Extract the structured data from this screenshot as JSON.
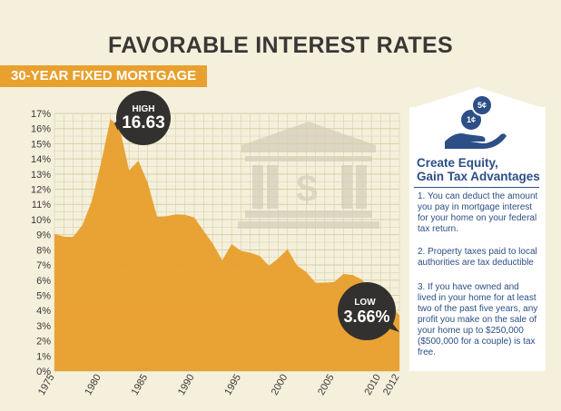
{
  "header": {
    "title": "FAVORABLE INTEREST RATES",
    "subtitle": "30-YEAR FIXED MORTGAGE"
  },
  "callouts": {
    "high_label": "HIGH",
    "high_value": "16.63",
    "low_label": "LOW",
    "low_value": "3.66%"
  },
  "sidebar": {
    "icon_coin_1": "1¢",
    "icon_coin_2": "5¢",
    "heading_line1": "Create Equity,",
    "heading_line2": "Gain Tax Advantages",
    "items": [
      "1. You can deduct the amount you pay in mortgage interest for your home on your federal tax return.",
      "2. Property taxes paid to local authorities are tax deductible",
      "3. If you have owned and lived in your home for at least two of the past five years, any profit you make on the sale of your home up to $250,000 ($500,000 for a couple) is tax free."
    ]
  },
  "colors": {
    "background": "#f4f0dc",
    "area": "#e8a02e",
    "grid": "#d9cfa6",
    "text_dark": "#3a3736",
    "accent_blue": "#2c4f86",
    "callout_dark": "#33312f",
    "bank_icon": "#dcd7c4"
  },
  "chart_data": {
    "type": "area",
    "x_ticks": [
      "1975",
      "1980",
      "1985",
      "1990",
      "1995",
      "2000",
      "2005",
      "2010",
      "2012"
    ],
    "y_ticks": [
      "0%",
      "1%",
      "2%",
      "3%",
      "4%",
      "5%",
      "6%",
      "7%",
      "8%",
      "9%",
      "10%",
      "11%",
      "12%",
      "13%",
      "14%",
      "15%",
      "16%",
      "17%"
    ],
    "ylim": [
      0,
      17
    ],
    "xlim": [
      1975,
      2012
    ],
    "grid": true,
    "x": [
      1975,
      1976,
      1977,
      1978,
      1979,
      1980,
      1981,
      1982,
      1983,
      1984,
      1985,
      1986,
      1987,
      1988,
      1989,
      1990,
      1991,
      1992,
      1993,
      1994,
      1995,
      1996,
      1997,
      1998,
      1999,
      2000,
      2001,
      2002,
      2003,
      2004,
      2005,
      2006,
      2007,
      2008,
      2009,
      2010,
      2011,
      2012
    ],
    "values": [
      9.05,
      8.87,
      8.85,
      9.64,
      11.2,
      13.74,
      16.63,
      16.04,
      13.24,
      13.88,
      12.43,
      10.19,
      10.21,
      10.34,
      10.32,
      10.13,
      9.25,
      8.39,
      7.31,
      8.38,
      7.93,
      7.81,
      7.6,
      6.94,
      7.44,
      8.05,
      6.97,
      6.54,
      5.83,
      5.84,
      5.87,
      6.41,
      6.34,
      6.03,
      5.04,
      4.69,
      4.45,
      3.66
    ]
  }
}
